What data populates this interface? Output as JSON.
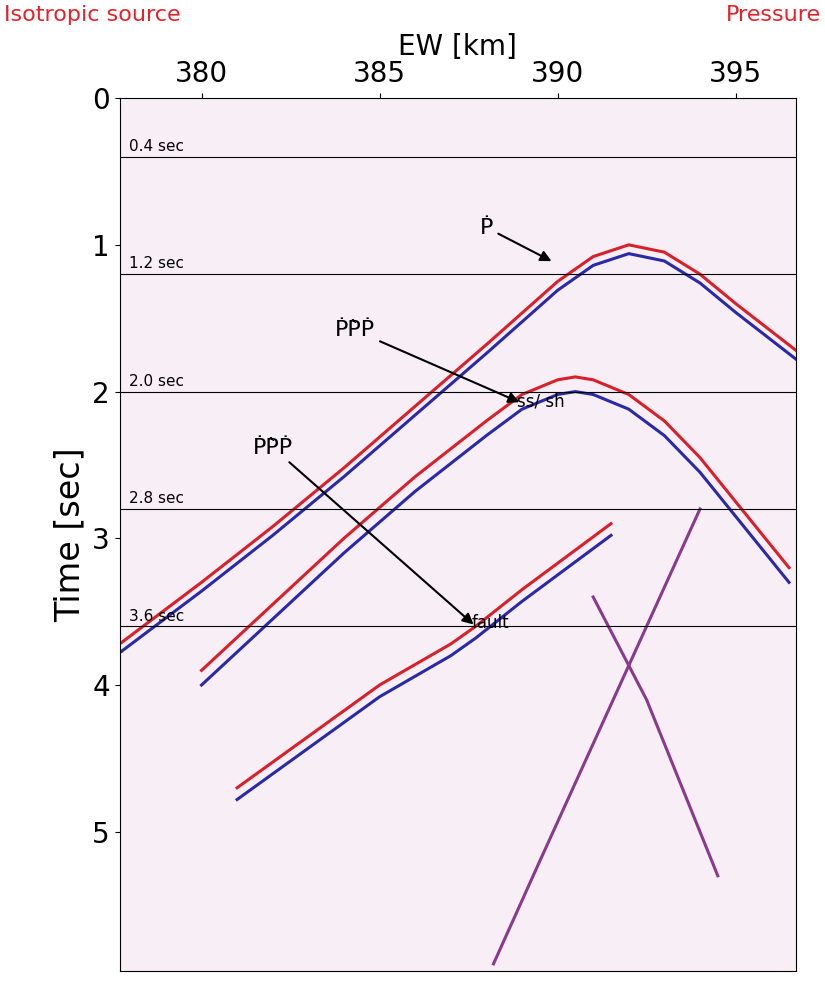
{
  "chart_data": {
    "type": "seismic_section",
    "title_left": "Isotropic source",
    "title_right": "Pressure",
    "x_label": "EW [km]",
    "y_label": "Time [sec]",
    "xlim": [
      377.7,
      396.7
    ],
    "xticks": [
      380,
      385,
      390,
      395
    ],
    "ylim": [
      5.95,
      0
    ],
    "yticks": [
      0,
      1,
      2,
      3,
      4,
      5
    ],
    "grid": false,
    "hlines": [
      {
        "value": 0.4,
        "label": "0.4 sec"
      },
      {
        "value": 1.2,
        "label": "1.2 sec"
      },
      {
        "value": 2.0,
        "label": "2.0 sec"
      },
      {
        "value": 2.8,
        "label": "2.8 sec"
      },
      {
        "value": 3.6,
        "label": "3.6 sec"
      }
    ],
    "series": [
      {
        "color": "#d9202a",
        "x": [
          377.7,
          380,
          382,
          384,
          386,
          388,
          390,
          391,
          392,
          393,
          394,
          395,
          396.7
        ],
        "values": [
          3.72,
          3.3,
          2.92,
          2.52,
          2.1,
          1.68,
          1.25,
          1.08,
          1.0,
          1.05,
          1.2,
          1.4,
          1.72
        ]
      },
      {
        "color": "#2a2aa8",
        "x": [
          377.7,
          380,
          382,
          384,
          386,
          388,
          390,
          391,
          392,
          393,
          394,
          395,
          396.7
        ],
        "values": [
          3.78,
          3.36,
          2.98,
          2.58,
          2.16,
          1.74,
          1.31,
          1.14,
          1.06,
          1.11,
          1.26,
          1.46,
          1.78
        ]
      },
      {
        "color": "#d9202a",
        "x": [
          380,
          382,
          384,
          386,
          388,
          389,
          390,
          390.5,
          391,
          392,
          393,
          394,
          395,
          396.5
        ],
        "values": [
          3.9,
          3.45,
          3.0,
          2.58,
          2.2,
          2.02,
          1.92,
          1.9,
          1.92,
          2.02,
          2.2,
          2.45,
          2.75,
          3.2
        ]
      },
      {
        "color": "#2a2aa8",
        "x": [
          380,
          382,
          384,
          386,
          388,
          389,
          390,
          390.5,
          391,
          392,
          393,
          394,
          395,
          396.5
        ],
        "values": [
          4.0,
          3.55,
          3.1,
          2.68,
          2.3,
          2.12,
          2.02,
          2.0,
          2.02,
          2.12,
          2.3,
          2.55,
          2.85,
          3.3
        ]
      },
      {
        "color": "#d9202a",
        "x": [
          381,
          383,
          385,
          387,
          387.7,
          389,
          391.5
        ],
        "values": [
          4.7,
          4.35,
          4.0,
          3.72,
          3.6,
          3.35,
          2.9
        ]
      },
      {
        "color": "#2a2aa8",
        "x": [
          381,
          383,
          385,
          387,
          387.7,
          389,
          391.5
        ],
        "values": [
          4.78,
          4.43,
          4.08,
          3.8,
          3.68,
          3.43,
          2.98
        ]
      },
      {
        "color": "#8a3a8a",
        "x": [
          388.2,
          389.5,
          391,
          392.5,
          394
        ],
        "values": [
          5.9,
          5.2,
          4.4,
          3.6,
          2.8
        ]
      },
      {
        "color": "#8a3a8a",
        "x": [
          391,
          392.5,
          393.5,
          394.5
        ],
        "values": [
          3.4,
          4.1,
          4.7,
          5.3
        ]
      }
    ],
    "annotations": [
      {
        "text": "Ṗ",
        "subscript": null,
        "xy": [
          389.9,
          1.12
        ],
        "xytext": [
          388.0,
          0.95
        ]
      },
      {
        "text": "ṖP̀Ṗ",
        "subscript": "ss/ sh",
        "xy": [
          389.0,
          2.08
        ],
        "xytext": [
          384.3,
          1.65
        ]
      },
      {
        "text": "ṖP̀Ṗ",
        "subscript": "fault",
        "xy": [
          387.7,
          3.6
        ],
        "xytext": [
          382.0,
          2.45
        ]
      }
    ]
  }
}
